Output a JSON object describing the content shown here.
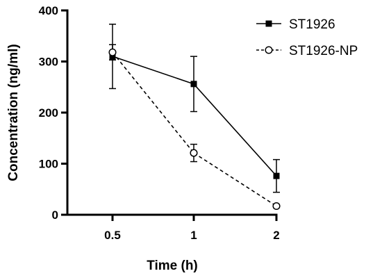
{
  "chart_data": {
    "type": "line",
    "categories": [
      "0.5",
      "1",
      "2"
    ],
    "xlabel": "Time (h)",
    "ylabel": "Concentration (ng/ml)",
    "ylim": [
      0,
      400
    ],
    "yticks": [
      "0",
      "100",
      "200",
      "300",
      "400"
    ],
    "legend_position": "top-right",
    "series": [
      {
        "name": "ST1926",
        "values": [
          310,
          256,
          76
        ],
        "errors": [
          63,
          54,
          32
        ],
        "marker": "filled-square",
        "line_style": "solid",
        "color": "#000000"
      },
      {
        "name": "ST1926-NP",
        "values": [
          318,
          121,
          17
        ],
        "errors": [
          15,
          17,
          3
        ],
        "marker": "open-circle",
        "line_style": "dashed",
        "color": "#000000"
      }
    ]
  }
}
